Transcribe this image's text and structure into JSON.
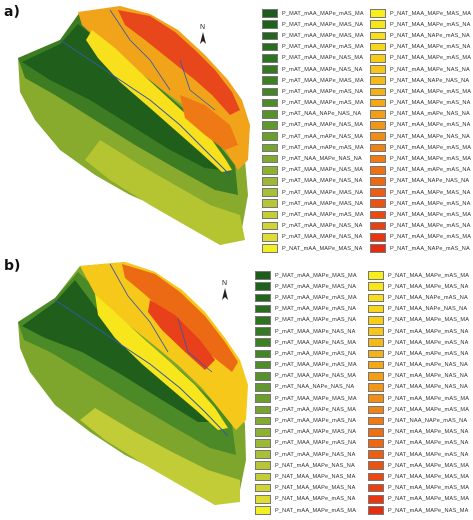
{
  "panels": [
    {
      "label": "a)",
      "north": "N",
      "legend_left": [
        {
          "label": "P_MAT_mAA_MAPe_mAS_MA",
          "color": "#1d5c1a"
        },
        {
          "label": "P_MAT_mAA_MAPe_MAS_NA",
          "color": "#1f611c"
        },
        {
          "label": "P_MAT_mAA_MAPe_MAS_MA",
          "color": "#22661e"
        },
        {
          "label": "P_MAT_mAA_MAPe_mAS_MA",
          "color": "#286c1f"
        },
        {
          "label": "P_MAT_mAA_MAPe_NAS_MA",
          "color": "#2e7321"
        },
        {
          "label": "P_mAT_MAA_MAPe_NAS_NA",
          "color": "#357a22"
        },
        {
          "label": "P_mAT_MAA_MAPe_MAS_MA",
          "color": "#3c8023"
        },
        {
          "label": "P_mAT_mAA_MAPe_mAS_NA",
          "color": "#448625"
        },
        {
          "label": "P_mAT_MAA_MAPe_mAS_MA",
          "color": "#4d8c27"
        },
        {
          "label": "P_mAT_NAA_NAPe_NAS_NA",
          "color": "#56922a"
        },
        {
          "label": "P_mAT_mAA_MAPe_NAS_MA",
          "color": "#5f982c"
        },
        {
          "label": "P_mAT_mAA_mAPe_NAS_MA",
          "color": "#6a9e2d"
        },
        {
          "label": "P_mAT_mAA_mAPe_mAS_MA",
          "color": "#76a42f"
        },
        {
          "label": "P_mAT_NAA_MAPe_NAS_NA",
          "color": "#82aa30"
        },
        {
          "label": "P_mAT_MAA_MAPe_NAS_MA",
          "color": "#8fb132"
        },
        {
          "label": "P_mAT_MAA_MAPe_NAS_NA",
          "color": "#9cb834"
        },
        {
          "label": "P_mAT_MAA_MAPe_MAS_NA",
          "color": "#a9bf35"
        },
        {
          "label": "P_mAT_mAA_MAPe_MAS_NA",
          "color": "#b6c636"
        },
        {
          "label": "P_mAT_mAA_MAPe_mAS_MA",
          "color": "#c3cd36"
        },
        {
          "label": "P_mAT_mAA_MAPe_NAS_NA",
          "color": "#d1d435"
        },
        {
          "label": "P_mAT_MAA_MAPe_NAS_NA",
          "color": "#dfdc33"
        },
        {
          "label": "P_NAT_mAA_MAPe_MAS_NA",
          "color": "#f2ef22"
        }
      ],
      "legend_right": [
        {
          "label": "P_NAT_MAA_MAPe_MAS_MA",
          "color": "#f8ee1c"
        },
        {
          "label": "P_NAT_MAA_MAPe_mAS_NA",
          "color": "#f8e61c"
        },
        {
          "label": "P_NAT_MAA_NAPe_mAS_NA",
          "color": "#f8de1b"
        },
        {
          "label": "P_NAT_MAA_MAPe_mAS_NA",
          "color": "#f8d61b"
        },
        {
          "label": "P_NAT_MAA_MAPe_mAS_MA",
          "color": "#f7cd1a"
        },
        {
          "label": "P_NAT_mAA_MAPe_NAS_NA",
          "color": "#f6c41a"
        },
        {
          "label": "P_NAT_MAA_NAPe_NAS_NA",
          "color": "#f5ba19"
        },
        {
          "label": "P_NAT_MAA_MAPe_mAS_MA",
          "color": "#f4b118"
        },
        {
          "label": "P_NAT_MAA_MAPe_mAS_NA",
          "color": "#f3a818"
        },
        {
          "label": "P_NAT_MAA_mAPe_NAS_NA",
          "color": "#f29f17"
        },
        {
          "label": "P_NAT_mAA_MAPe_mAS_NA",
          "color": "#f19616"
        },
        {
          "label": "P_NAT_MAA_MAPe_NAS_NA",
          "color": "#f08d16"
        },
        {
          "label": "P_NAT_mAA_MAPe_mAS_MA",
          "color": "#ef8415"
        },
        {
          "label": "P_NAT_MAA_MAPe_mAS_MA",
          "color": "#ee7b15"
        },
        {
          "label": "P_NAT_MAA_mAPe_mAS_NA",
          "color": "#ed7114"
        },
        {
          "label": "P_NAT_MAA_NAPe_NAS_NA",
          "color": "#ec6813"
        },
        {
          "label": "P_NAT_mAA_MAPe_MAS_NA",
          "color": "#eb5e13"
        },
        {
          "label": "P_NAT_mAA_MAPe_mAS_NA",
          "color": "#ea5412"
        },
        {
          "label": "P_NAT_MAA_MAPe_mAS_MA",
          "color": "#e94a12"
        },
        {
          "label": "P_NAT_MAA_MAPe_mAS_NA",
          "color": "#e84011"
        },
        {
          "label": "P_NAT_mAA_MAPe_mAS_MA",
          "color": "#e73611"
        },
        {
          "label": "P_NAT_mAA_NAPe_mAS_NA",
          "color": "#e52c10"
        }
      ]
    },
    {
      "label": "b)",
      "north": "N",
      "legend_left": [
        {
          "label": "P_MAT_mAA_MAPe_MAS_MA",
          "color": "#1d5c1a"
        },
        {
          "label": "P_MAT_mAA_MAPe_MAS_NA",
          "color": "#1f611c"
        },
        {
          "label": "P_MAT_mAA_MAPe_mAS_MA",
          "color": "#22661e"
        },
        {
          "label": "P_MAT_mAA_MAPe_mAS_NA",
          "color": "#286c1f"
        },
        {
          "label": "P_MAT_mAA_MAPe_mAS_NA",
          "color": "#2e7321"
        },
        {
          "label": "P_mAT_MAA_MAPe_NAS_NA",
          "color": "#357a22"
        },
        {
          "label": "P_mAT_MAA_MAPe_NAS_MA",
          "color": "#3c8023"
        },
        {
          "label": "P_mAT_mAA_MAPe_mAS_NA",
          "color": "#448625"
        },
        {
          "label": "P_mAT_MAA_MAPe_mAS_MA",
          "color": "#4d8c27"
        },
        {
          "label": "P_mAT_MAA_MAPe_NAS_MA",
          "color": "#56922a"
        },
        {
          "label": "P_mAT_NAA_NAPe_NAS_NA",
          "color": "#5f982c"
        },
        {
          "label": "P_mAT_MAA_MAPe_MAS_MA",
          "color": "#6a9e2d"
        },
        {
          "label": "P_mAT_mAA_MAPe_NAS_MA",
          "color": "#76a42f"
        },
        {
          "label": "P_mAT_mAA_MAPe_mAS_NA",
          "color": "#82aa30"
        },
        {
          "label": "P_mAT_mAA_MAPe_MAS_NA",
          "color": "#8fb132"
        },
        {
          "label": "P_mAT_MAA_MAPe_mAS_NA",
          "color": "#9cb834"
        },
        {
          "label": "P_mAT_mAA_MAPe_NAS_NA",
          "color": "#a9bf35"
        },
        {
          "label": "P_NAT_mAA_MAPe_NAS_NA",
          "color": "#b6c636"
        },
        {
          "label": "P_NAT_MAA_MAPe_NAS_MA",
          "color": "#c3cd36"
        },
        {
          "label": "P_NAT_MAA_MAPe_MAS_NA",
          "color": "#d1d435"
        },
        {
          "label": "P_NAT_MAA_MAPe_mAS_NA",
          "color": "#dfdc33"
        },
        {
          "label": "P_NAT_mAA_MAPe_mAS_MA",
          "color": "#f2ef22"
        }
      ],
      "legend_right": [
        {
          "label": "P_NAT_MAA_MAPe_mAS_MA",
          "color": "#f8ee1c"
        },
        {
          "label": "P_NAT_MAA_MAPe_MAS_NA",
          "color": "#f8e61c"
        },
        {
          "label": "P_NAT_MAA_NAPe_mAS_NA",
          "color": "#f8de1b"
        },
        {
          "label": "P_NAT_MAA_NAPe_NAS_NA",
          "color": "#f8d61b"
        },
        {
          "label": "P_NAT_MAA_MAPe_MAS_MA",
          "color": "#f7cd1a"
        },
        {
          "label": "P_NAT_mAA_MAPe_mAS_NA",
          "color": "#f6c41a"
        },
        {
          "label": "P_NAT_MAA_MAPe_mAS_NA",
          "color": "#f5ba19"
        },
        {
          "label": "P_NAT_MAA_mAPe_mAS_NA",
          "color": "#f4b118"
        },
        {
          "label": "P_NAT_MAA_mAPe_NAS_NA",
          "color": "#f3a818"
        },
        {
          "label": "P_NAT_mAA_MAPe_NAS_NA",
          "color": "#f29f17"
        },
        {
          "label": "P_NAT_MAA_MAPe_NAS_NA",
          "color": "#f19616"
        },
        {
          "label": "P_NAT_mAA_MAPe_mAS_MA",
          "color": "#f08d16"
        },
        {
          "label": "P_NAT_MAA_MAPe_mAS_MA",
          "color": "#ef8415"
        },
        {
          "label": "P_NAT_NAA_NAPe_mAS_NA",
          "color": "#ee7b15"
        },
        {
          "label": "P_NAT_mAA_MAPe_MAS_NA",
          "color": "#ed7114"
        },
        {
          "label": "P_NAT_mAA_MAPe_mAS_NA",
          "color": "#ec6813"
        },
        {
          "label": "P_NAT_MAA_MAPe_mAS_NA",
          "color": "#eb5e13"
        },
        {
          "label": "P_NAT_mAA_MAPe_MAS_MA",
          "color": "#ea5412"
        },
        {
          "label": "P_NAT_MAA_MAPe_MAS_MA",
          "color": "#e94a12"
        },
        {
          "label": "P_NAT_mAA_MAPe_mAS_MA",
          "color": "#e84011"
        },
        {
          "label": "P_NAT_mAA_MAPe_MAS_MA",
          "color": "#e73611"
        },
        {
          "label": "P_NAT_mAA_MAPe_NAS_MA",
          "color": "#e52c10"
        }
      ]
    }
  ]
}
